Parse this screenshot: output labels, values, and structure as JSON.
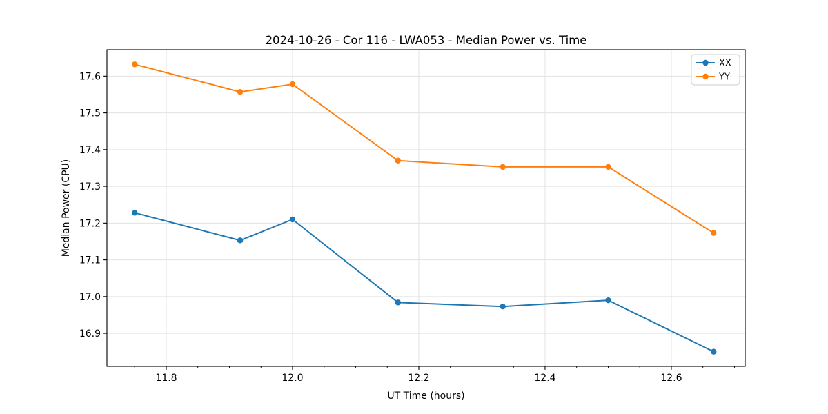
{
  "chart_data": {
    "type": "line",
    "title": "2024-10-26 - Cor 116 - LWA053 - Median Power vs. Time",
    "xlabel": "UT Time (hours)",
    "ylabel": "Median Power (CPU)",
    "x": [
      11.75,
      11.917,
      12.0,
      12.167,
      12.333,
      12.5,
      12.667
    ],
    "series": [
      {
        "name": "XX",
        "color": "#1f77b4",
        "values": [
          17.228,
          17.153,
          17.21,
          16.984,
          16.973,
          16.99,
          16.85
        ]
      },
      {
        "name": "YY",
        "color": "#ff7f0e",
        "values": [
          17.632,
          17.557,
          17.578,
          17.37,
          17.353,
          17.353,
          17.173
        ]
      }
    ],
    "xlim": [
      11.706,
      12.717
    ],
    "ylim": [
      16.81,
      17.672
    ],
    "xticks": [
      11.8,
      12.0,
      12.2,
      12.4,
      12.6
    ],
    "xtick_labels": [
      "11.8",
      "12.0",
      "12.2",
      "12.4",
      "12.6"
    ],
    "xtick_minor_step": 0.05,
    "yticks": [
      16.9,
      17.0,
      17.1,
      17.2,
      17.3,
      17.4,
      17.5,
      17.6
    ],
    "ytick_labels": [
      "16.9",
      "17.0",
      "17.1",
      "17.2",
      "17.3",
      "17.4",
      "17.5",
      "17.6"
    ],
    "grid": true,
    "grid_color": "#e2e2e2",
    "legend": {
      "position": "upper right",
      "entries": [
        "XX",
        "YY"
      ]
    },
    "marker": "circle",
    "line_width": 2,
    "marker_radius": 4.2
  }
}
